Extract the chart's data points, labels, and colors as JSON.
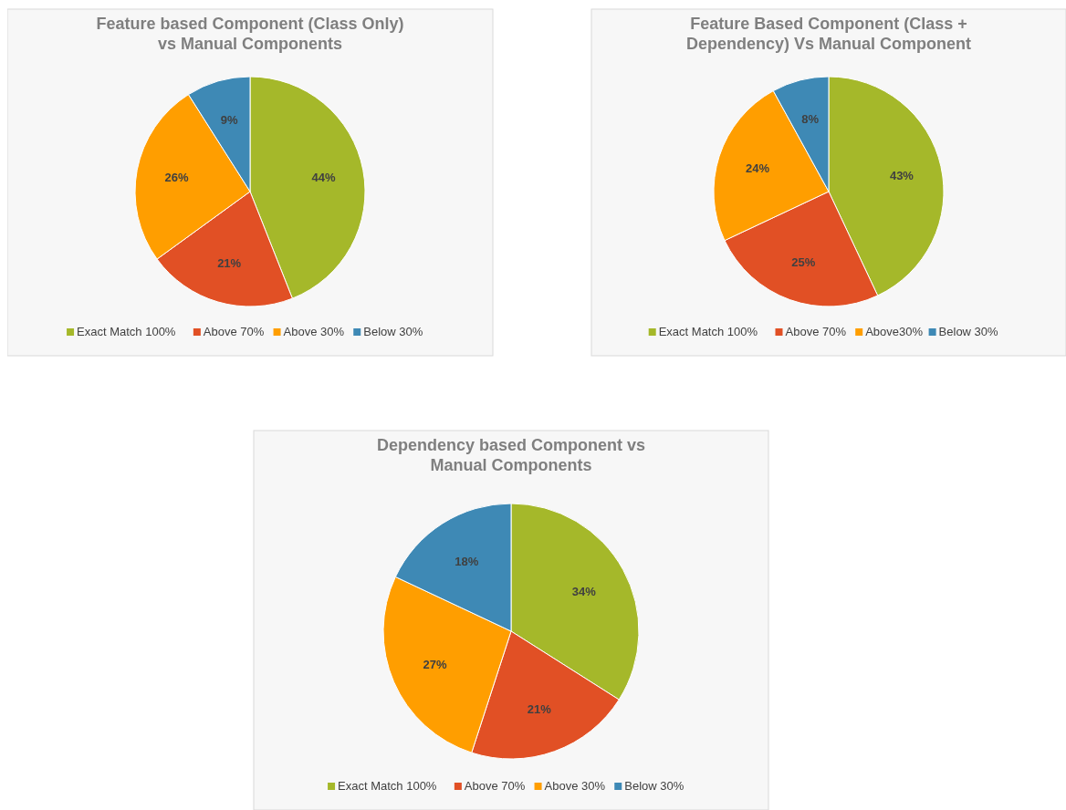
{
  "chart_data": [
    {
      "type": "pie",
      "title": "Feature based Component (Class Only)\nvs Manual Components",
      "categories": [
        "Exact Match 100%",
        "Above 70%",
        "Above 30%",
        "Below 30%"
      ],
      "values": [
        44,
        21,
        26,
        9
      ],
      "value_labels": [
        "44%",
        "21%",
        "26%",
        "9%"
      ],
      "colors": [
        "#a5b82a",
        "#e15025",
        "#ff9e00",
        "#3e89b5"
      ],
      "legend": "bottom"
    },
    {
      "type": "pie",
      "title": "Feature Based Component (Class +\nDependency)  Vs Manual Component",
      "categories": [
        "Exact Match 100%",
        "Above 70%",
        "Above30%",
        "Below 30%"
      ],
      "values": [
        43,
        25,
        24,
        8
      ],
      "value_labels": [
        "43%",
        "25%",
        "24%",
        "8%"
      ],
      "colors": [
        "#a5b82a",
        "#e15025",
        "#ff9e00",
        "#3e89b5"
      ],
      "legend": "bottom"
    },
    {
      "type": "pie",
      "title": "Dependency based Component  vs\nManual Components",
      "categories": [
        "Exact Match 100%",
        "Above 70%",
        "Above 30%",
        "Below 30%"
      ],
      "values": [
        34,
        21,
        27,
        18
      ],
      "value_labels": [
        "34%",
        "21%",
        "27%",
        "18%"
      ],
      "colors": [
        "#a5b82a",
        "#e15025",
        "#ff9e00",
        "#3e89b5"
      ],
      "legend": "bottom"
    }
  ]
}
